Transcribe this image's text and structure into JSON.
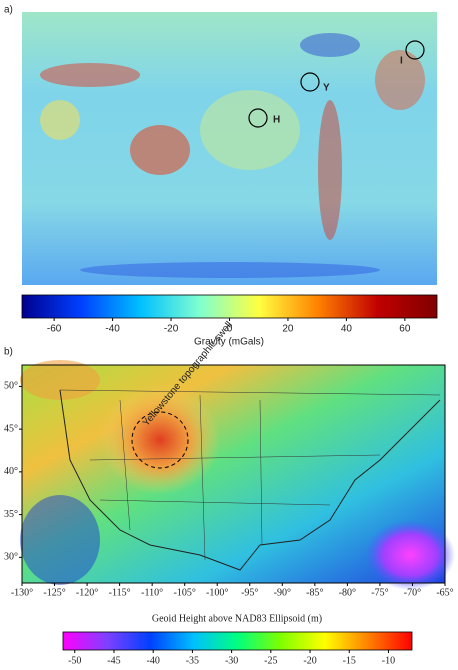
{
  "panel_a": {
    "label": "a)",
    "markers": [
      {
        "label": "H"
      },
      {
        "label": "Y"
      },
      {
        "label": "I"
      }
    ],
    "colorbar": {
      "title": "Gravity (mGals)",
      "lim": [
        -71,
        71
      ],
      "ticks": [
        -60,
        -40,
        -20,
        0,
        20,
        40,
        60
      ],
      "colors": [
        "#00008f",
        "#0040ff",
        "#00c0ff",
        "#80ffd0",
        "#ffff40",
        "#ff8000",
        "#c00000",
        "#800000"
      ]
    }
  },
  "panel_b": {
    "label": "b)",
    "annotation": "Yellowstone topographic swell",
    "lonlim": [
      -130,
      -65
    ],
    "latlim": [
      27,
      52.5
    ],
    "lonticks": [
      {
        "value": -130,
        "label": "-130°"
      },
      {
        "value": -125,
        "label": "-125°"
      },
      {
        "value": -120,
        "label": "-120°"
      },
      {
        "value": -115,
        "label": "-115°"
      },
      {
        "value": -110,
        "label": "-110°"
      },
      {
        "value": -105,
        "label": "-105°"
      },
      {
        "value": -100,
        "label": "-100°"
      },
      {
        "value": -95,
        "label": "-95°"
      },
      {
        "value": -90,
        "label": "-90°"
      },
      {
        "value": -85,
        "label": "-85°"
      },
      {
        "value": -80,
        "label": "-80°"
      },
      {
        "value": -75,
        "label": "-75°"
      },
      {
        "value": -70,
        "label": "-70°"
      },
      {
        "value": -65,
        "label": "-65°"
      }
    ],
    "latticks": [
      {
        "value": 30,
        "label": "30°"
      },
      {
        "value": 35,
        "label": "35°"
      },
      {
        "value": 40,
        "label": "40°"
      },
      {
        "value": 45,
        "label": "45°"
      },
      {
        "value": 50,
        "label": "50°"
      }
    ],
    "colorbar": {
      "title": "Geoid Height above NAD83 Ellipsoid (m)",
      "lim": [
        -51.5,
        -7
      ],
      "ticks": [
        -50,
        -45,
        -40,
        -35,
        -30,
        -25,
        -20,
        -15,
        -10
      ],
      "colors": [
        "#ff00ff",
        "#8040ff",
        "#0040ff",
        "#00c0ff",
        "#00ff80",
        "#80ff00",
        "#ffff00",
        "#ff8000",
        "#ff0000"
      ]
    }
  }
}
